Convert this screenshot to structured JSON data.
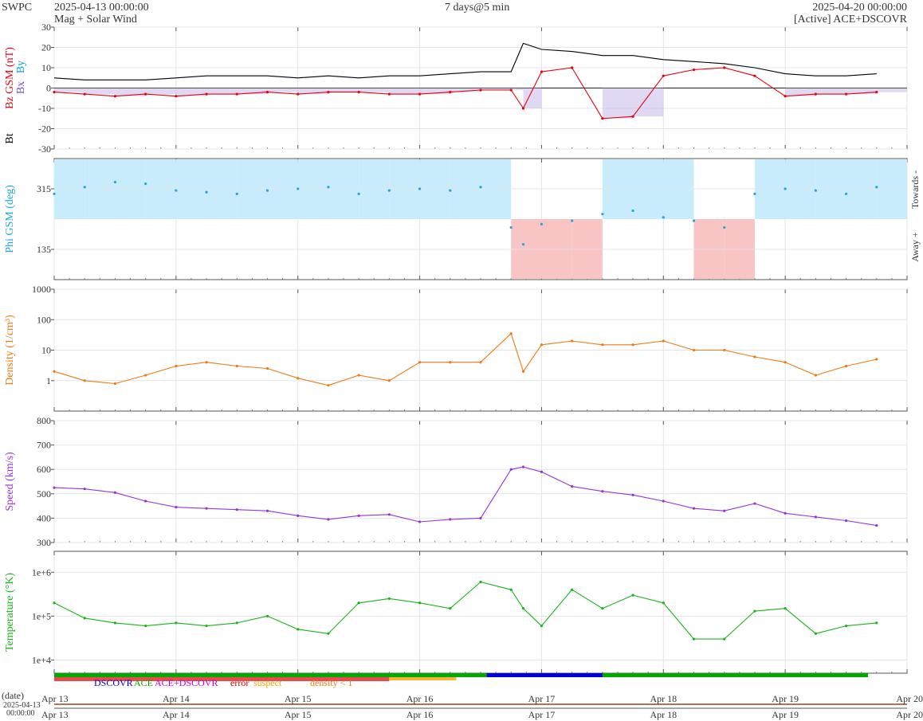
{
  "header": {
    "brand": "SWPC",
    "start_time": "2025-04-13 00:00:00",
    "product": "Mag + Solar Wind",
    "span": "7 days@5 min",
    "end_time": "2025-04-20 00:00:00",
    "source": "[Active] ACE+DSCOVR"
  },
  "colors": {
    "bt": "#000000",
    "bz": "#e8000b",
    "by": "#00a2e8",
    "bz_neg": "#c9b8ea",
    "phi": "#1ba7df",
    "phi_towards": "#c8ecfb",
    "phi_away": "#f8c4c4",
    "density": "#ee7a15",
    "speed": "#9634d8",
    "temperature": "#19b419",
    "dscovr": "#0000dd",
    "ace": "#00aa00",
    "ace_dscovr": "#cc00cc",
    "error": "#dd0000",
    "suspect": "#f5a300",
    "density_lt1": "#ee7a15"
  },
  "legend": {
    "dscovr": "DSCOVR",
    "ace": "ACE",
    "ace_dscovr": "ACE+DSCOVR",
    "error": "error",
    "suspect": "suspect",
    "density_lt1": "density < 1"
  },
  "time_axis": {
    "date_label": "(date)",
    "date_value": "2025-04-13",
    "time_value": "00:00:00",
    "tick_labels": [
      "Apr 13",
      "Apr 14",
      "Apr 15",
      "Apr 16",
      "Apr 17",
      "Apr 18",
      "Apr 19",
      "Apr 20"
    ]
  },
  "chart_data": [
    {
      "type": "line",
      "ylabel_parts": [
        "Bt",
        "Bz GSM (nT)",
        "Bx",
        "By"
      ],
      "ylim": [
        -30,
        30
      ],
      "yticks": [
        -30,
        -20,
        -10,
        0,
        10,
        20,
        30
      ],
      "x_days": [
        0,
        0.25,
        0.5,
        0.75,
        1,
        1.25,
        1.5,
        1.75,
        2,
        2.25,
        2.5,
        2.75,
        3,
        3.25,
        3.5,
        3.75,
        3.85,
        4,
        4.25,
        4.5,
        4.75,
        5,
        5.25,
        5.5,
        5.75,
        6,
        6.25,
        6.5,
        6.75
      ],
      "series": [
        {
          "name": "Bt",
          "values": [
            5,
            4,
            4,
            4,
            5,
            6,
            6,
            6,
            5,
            6,
            5,
            6,
            6,
            7,
            8,
            8,
            22,
            19,
            18,
            16,
            16,
            14,
            13,
            12,
            10,
            7,
            6,
            6,
            7
          ]
        },
        {
          "name": "Bz",
          "values": [
            -2,
            -3,
            -4,
            -3,
            -4,
            -3,
            -3,
            -2,
            -3,
            -2,
            -2,
            -3,
            -3,
            -2,
            -1,
            -1,
            -10,
            8,
            10,
            -15,
            -14,
            6,
            9,
            10,
            6,
            -4,
            -3,
            -3,
            -2
          ]
        }
      ]
    },
    {
      "type": "scatter",
      "ylabel": "Phi GSM (deg)",
      "right_labels": [
        "Towards -",
        "Away +"
      ],
      "yticks": [
        135,
        315
      ],
      "ylim": [
        45,
        405
      ],
      "x_days": [
        0,
        0.25,
        0.5,
        0.75,
        1,
        1.25,
        1.5,
        1.75,
        2,
        2.25,
        2.5,
        2.75,
        3,
        3.25,
        3.5,
        3.75,
        3.85,
        4,
        4.25,
        4.5,
        4.75,
        5,
        5.25,
        5.5,
        5.75,
        6,
        6.25,
        6.5,
        6.75
      ],
      "values": [
        300,
        320,
        335,
        330,
        310,
        305,
        300,
        310,
        315,
        320,
        300,
        310,
        315,
        310,
        320,
        200,
        150,
        210,
        220,
        240,
        250,
        230,
        220,
        200,
        300,
        315,
        310,
        300,
        320
      ]
    },
    {
      "type": "line",
      "ylabel": "Density (1/cm³)",
      "yscale": "log",
      "ylim": [
        0.1,
        1000
      ],
      "ytick_labels": [
        "1",
        "10",
        "100",
        "1000"
      ],
      "x_days": [
        0,
        0.25,
        0.5,
        0.75,
        1,
        1.25,
        1.5,
        1.75,
        2,
        2.25,
        2.5,
        2.75,
        3,
        3.25,
        3.5,
        3.75,
        3.85,
        4,
        4.25,
        4.5,
        4.75,
        5,
        5.25,
        5.5,
        5.75,
        6,
        6.25,
        6.5,
        6.75
      ],
      "values": [
        2,
        1,
        0.8,
        1.5,
        3,
        4,
        3,
        2.5,
        1.2,
        0.7,
        1.5,
        1,
        4,
        4,
        4,
        35,
        2,
        15,
        20,
        15,
        15,
        20,
        10,
        10,
        6,
        4,
        1.5,
        3,
        5
      ]
    },
    {
      "type": "line",
      "ylabel": "Speed (km/s)",
      "ylim": [
        300,
        800
      ],
      "yticks": [
        300,
        400,
        500,
        600,
        700,
        800
      ],
      "x_days": [
        0,
        0.25,
        0.5,
        0.75,
        1,
        1.25,
        1.5,
        1.75,
        2,
        2.25,
        2.5,
        2.75,
        3,
        3.25,
        3.5,
        3.75,
        3.85,
        4,
        4.25,
        4.5,
        4.75,
        5,
        5.25,
        5.5,
        5.75,
        6,
        6.25,
        6.5,
        6.75
      ],
      "values": [
        525,
        520,
        505,
        470,
        445,
        440,
        435,
        430,
        410,
        395,
        410,
        415,
        385,
        395,
        400,
        600,
        610,
        590,
        530,
        510,
        495,
        470,
        440,
        430,
        460,
        420,
        405,
        390,
        370
      ]
    },
    {
      "type": "line",
      "ylabel": "Temperature (°K)",
      "yscale": "log",
      "ylim": [
        5000,
        3000000
      ],
      "ytick_labels": [
        "1e+4",
        "1e+5",
        "1e+6"
      ],
      "x_days": [
        0,
        0.25,
        0.5,
        0.75,
        1,
        1.25,
        1.5,
        1.75,
        2,
        2.25,
        2.5,
        2.75,
        3,
        3.25,
        3.5,
        3.75,
        3.85,
        4,
        4.25,
        4.5,
        4.75,
        5,
        5.25,
        5.5,
        5.75,
        6,
        6.25,
        6.5,
        6.75
      ],
      "values": [
        200000,
        90000,
        70000,
        60000,
        70000,
        60000,
        70000,
        100000,
        50000,
        40000,
        200000,
        250000,
        200000,
        150000,
        600000,
        400000,
        150000,
        60000,
        400000,
        150000,
        300000,
        200000,
        30000,
        30000,
        130000,
        150000,
        40000,
        60000,
        70000
      ]
    }
  ]
}
